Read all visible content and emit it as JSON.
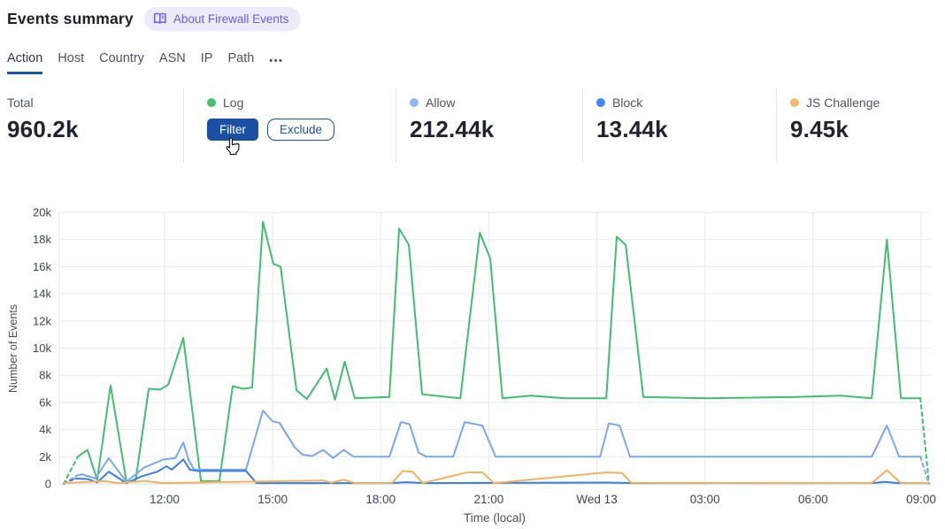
{
  "header": {
    "title": "Events summary",
    "badge_label": "About Firewall Events"
  },
  "tabs": {
    "items": [
      {
        "label": "Action",
        "active": true
      },
      {
        "label": "Host",
        "active": false
      },
      {
        "label": "Country",
        "active": false
      },
      {
        "label": "ASN",
        "active": false
      },
      {
        "label": "IP",
        "active": false
      },
      {
        "label": "Path",
        "active": false
      }
    ],
    "more_label": "•••"
  },
  "stats": {
    "total": {
      "label": "Total",
      "value": "960.2k"
    },
    "log": {
      "label": "Log",
      "dot_color": "#3ec46a",
      "filter_label": "Filter",
      "exclude_label": "Exclude"
    },
    "allow": {
      "label": "Allow",
      "value": "212.44k",
      "dot_color": "#8fb7f7"
    },
    "block": {
      "label": "Block",
      "value": "13.44k",
      "dot_color": "#4285f4"
    },
    "js_challenge": {
      "label": "JS Challenge",
      "value": "9.45k",
      "dot_color": "#f2bb69"
    }
  },
  "colors": {
    "accent_blue": "#1b4fa1",
    "badge_purple": "#6d5fe0",
    "tab_underline": "#1b55a8"
  },
  "chart_data": {
    "type": "line",
    "xlabel": "Time (local)",
    "ylabel": "Number of Events",
    "x_unit": "hours, decimal; values > 24 are the next day (Wed 13)",
    "xlim": [
      9.0,
      33.3
    ],
    "ylim": [
      0,
      20000
    ],
    "grid": true,
    "x_ticks": [
      {
        "t": 12,
        "label": "12:00"
      },
      {
        "t": 15,
        "label": "15:00"
      },
      {
        "t": 18,
        "label": "18:00"
      },
      {
        "t": 21,
        "label": "21:00"
      },
      {
        "t": 24,
        "label": "Wed 13"
      },
      {
        "t": 27,
        "label": "03:00"
      },
      {
        "t": 30,
        "label": "06:00"
      },
      {
        "t": 33,
        "label": "09:00"
      }
    ],
    "y_ticks": [
      {
        "v": 0,
        "label": "0"
      },
      {
        "v": 2000,
        "label": "2k"
      },
      {
        "v": 4000,
        "label": "4k"
      },
      {
        "v": 6000,
        "label": "6k"
      },
      {
        "v": 8000,
        "label": "8k"
      },
      {
        "v": 10000,
        "label": "10k"
      },
      {
        "v": 12000,
        "label": "12k"
      },
      {
        "v": 14000,
        "label": "14k"
      },
      {
        "v": 16000,
        "label": "16k"
      },
      {
        "v": 18000,
        "label": "18k"
      },
      {
        "v": 20000,
        "label": "20k"
      }
    ],
    "series": [
      {
        "name": "Log",
        "color": "#40bf6f",
        "dash_start": true,
        "dash_end": true,
        "points": [
          [
            9.2,
            0
          ],
          [
            9.59,
            2000
          ],
          [
            9.86,
            2500
          ],
          [
            10.13,
            300
          ],
          [
            10.5,
            7250
          ],
          [
            10.94,
            200
          ],
          [
            11.19,
            150
          ],
          [
            11.56,
            7000
          ],
          [
            11.88,
            6950
          ],
          [
            12.1,
            7300
          ],
          [
            12.52,
            10750
          ],
          [
            13.01,
            200
          ],
          [
            13.52,
            200
          ],
          [
            13.89,
            7200
          ],
          [
            14.19,
            7000
          ],
          [
            14.43,
            7100
          ],
          [
            14.73,
            19300
          ],
          [
            15.02,
            16200
          ],
          [
            15.22,
            16000
          ],
          [
            15.66,
            6900
          ],
          [
            15.95,
            6250
          ],
          [
            16.5,
            8500
          ],
          [
            16.73,
            6200
          ],
          [
            17.0,
            9000
          ],
          [
            17.28,
            6300
          ],
          [
            18.24,
            6400
          ],
          [
            18.51,
            18800
          ],
          [
            18.78,
            17600
          ],
          [
            19.15,
            6600
          ],
          [
            20.21,
            6300
          ],
          [
            20.75,
            18500
          ],
          [
            21.04,
            16600
          ],
          [
            21.38,
            6300
          ],
          [
            22.17,
            6500
          ],
          [
            23.15,
            6300
          ],
          [
            24.26,
            6300
          ],
          [
            24.55,
            18200
          ],
          [
            24.8,
            17600
          ],
          [
            25.29,
            6400
          ],
          [
            27.08,
            6300
          ],
          [
            29.54,
            6400
          ],
          [
            30.77,
            6500
          ],
          [
            31.63,
            6300
          ],
          [
            32.05,
            18000
          ],
          [
            32.44,
            6300
          ],
          [
            32.98,
            6300
          ],
          [
            33.22,
            0
          ]
        ]
      },
      {
        "name": "Allow",
        "color": "#7ba7ec",
        "dash_start": true,
        "dash_end": true,
        "points": [
          [
            9.2,
            0
          ],
          [
            9.55,
            600
          ],
          [
            9.71,
            700
          ],
          [
            10.08,
            400
          ],
          [
            10.45,
            1900
          ],
          [
            10.94,
            150
          ],
          [
            11.43,
            1200
          ],
          [
            11.97,
            1800
          ],
          [
            12.3,
            1900
          ],
          [
            12.52,
            3050
          ],
          [
            12.67,
            1750
          ],
          [
            12.82,
            1050
          ],
          [
            14.26,
            1050
          ],
          [
            14.73,
            5400
          ],
          [
            15.0,
            4600
          ],
          [
            15.19,
            4500
          ],
          [
            15.61,
            2700
          ],
          [
            15.83,
            2150
          ],
          [
            16.1,
            2050
          ],
          [
            16.4,
            2500
          ],
          [
            16.68,
            1900
          ],
          [
            16.97,
            2500
          ],
          [
            17.25,
            2000
          ],
          [
            18.24,
            2000
          ],
          [
            18.56,
            4550
          ],
          [
            18.8,
            4400
          ],
          [
            19.05,
            2300
          ],
          [
            19.27,
            2000
          ],
          [
            20.01,
            2000
          ],
          [
            20.33,
            4550
          ],
          [
            20.82,
            4300
          ],
          [
            21.19,
            2000
          ],
          [
            24.09,
            2000
          ],
          [
            24.33,
            4450
          ],
          [
            24.63,
            4300
          ],
          [
            24.92,
            2000
          ],
          [
            31.63,
            2000
          ],
          [
            32.05,
            4300
          ],
          [
            32.39,
            2000
          ],
          [
            32.98,
            2000
          ],
          [
            33.22,
            0
          ]
        ]
      },
      {
        "name": "Block",
        "color": "#3c7de2",
        "dash_start": true,
        "dash_end": false,
        "points": [
          [
            9.2,
            0
          ],
          [
            9.52,
            400
          ],
          [
            9.88,
            350
          ],
          [
            10.13,
            100
          ],
          [
            10.45,
            900
          ],
          [
            10.94,
            50
          ],
          [
            11.36,
            550
          ],
          [
            11.8,
            900
          ],
          [
            12.05,
            1300
          ],
          [
            12.2,
            1050
          ],
          [
            12.52,
            1800
          ],
          [
            12.7,
            1050
          ],
          [
            12.9,
            950
          ],
          [
            14.26,
            950
          ],
          [
            14.55,
            60
          ],
          [
            18.24,
            60
          ],
          [
            18.73,
            120
          ],
          [
            19.22,
            60
          ],
          [
            24.28,
            100
          ],
          [
            25.1,
            60
          ],
          [
            31.63,
            60
          ],
          [
            32.0,
            150
          ],
          [
            32.36,
            60
          ],
          [
            33.22,
            50
          ]
        ]
      },
      {
        "name": "JS Challenge",
        "color": "#f0b35f",
        "dash_start": false,
        "dash_end": false,
        "points": [
          [
            9.2,
            60
          ],
          [
            10.35,
            200
          ],
          [
            10.7,
            60
          ],
          [
            11.45,
            220
          ],
          [
            11.95,
            60
          ],
          [
            16.4,
            250
          ],
          [
            16.62,
            100
          ],
          [
            16.97,
            300
          ],
          [
            17.3,
            50
          ],
          [
            18.31,
            60
          ],
          [
            18.61,
            950
          ],
          [
            18.88,
            900
          ],
          [
            19.17,
            60
          ],
          [
            20.4,
            850
          ],
          [
            20.82,
            850
          ],
          [
            21.14,
            60
          ],
          [
            24.28,
            850
          ],
          [
            24.7,
            800
          ],
          [
            24.95,
            80
          ],
          [
            31.63,
            60
          ],
          [
            32.05,
            1000
          ],
          [
            32.44,
            60
          ],
          [
            33.22,
            60
          ]
        ]
      }
    ]
  }
}
